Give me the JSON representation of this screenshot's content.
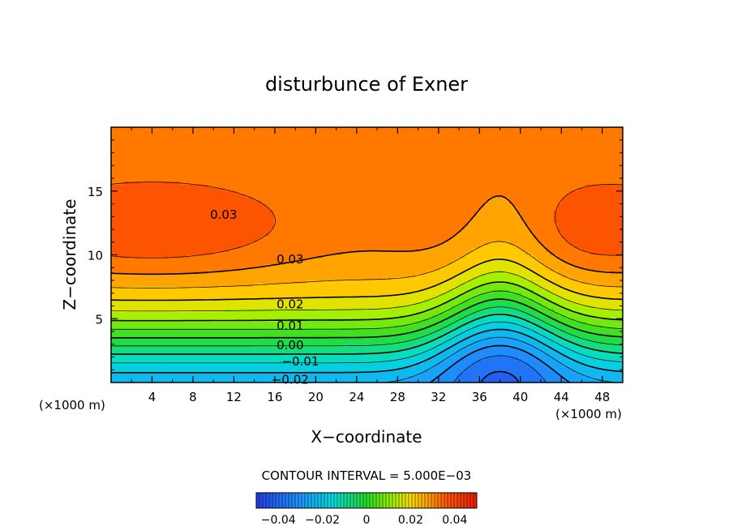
{
  "chart_data": {
    "type": "contour",
    "title": "disturbunce of Exner",
    "xlabel": "X−coordinate",
    "ylabel": "Z−coordinate",
    "x_unit_left": "(×1000 m)",
    "x_unit_right": "(×1000 m)",
    "xlim": [
      0,
      50
    ],
    "ylim": [
      0,
      20
    ],
    "x_ticks": [
      4,
      8,
      12,
      16,
      20,
      24,
      28,
      32,
      36,
      40,
      44,
      48
    ],
    "x_tick_labels": [
      "4",
      "8",
      "12",
      "16",
      "20",
      "24",
      "28",
      "32",
      "36",
      "40",
      "44",
      "48"
    ],
    "y_ticks": [
      5,
      10,
      15
    ],
    "y_tick_labels": [
      "5",
      "10",
      "15"
    ],
    "contour_interval_text": "CONTOUR INTERVAL = 5.000E−03",
    "contour_interval": 0.005,
    "contour_labels": [
      {
        "text": "0.03",
        "x": 11,
        "z": 13.2
      },
      {
        "text": "0.03",
        "x": 17.5,
        "z": 9.7
      },
      {
        "text": "0.02",
        "x": 17.5,
        "z": 6.2
      },
      {
        "text": "0.01",
        "x": 17.5,
        "z": 4.5
      },
      {
        "text": "0.00",
        "x": 17.5,
        "z": 3.0
      },
      {
        "text": "−0.01",
        "x": 18.5,
        "z": 1.7
      },
      {
        "text": "−0.02",
        "x": 17.5,
        "z": 0.3
      }
    ],
    "colorbar": {
      "range": [
        -0.05,
        0.05
      ],
      "ticks": [
        -0.04,
        -0.02,
        0,
        0.02,
        0.04
      ],
      "tick_labels": [
        "−0.04",
        "−0.02",
        "0",
        "0.02",
        "0.04"
      ]
    },
    "colors": {
      "low": "#1e96ff",
      "mid": "#33dd11",
      "high": "#ff4a00"
    }
  }
}
